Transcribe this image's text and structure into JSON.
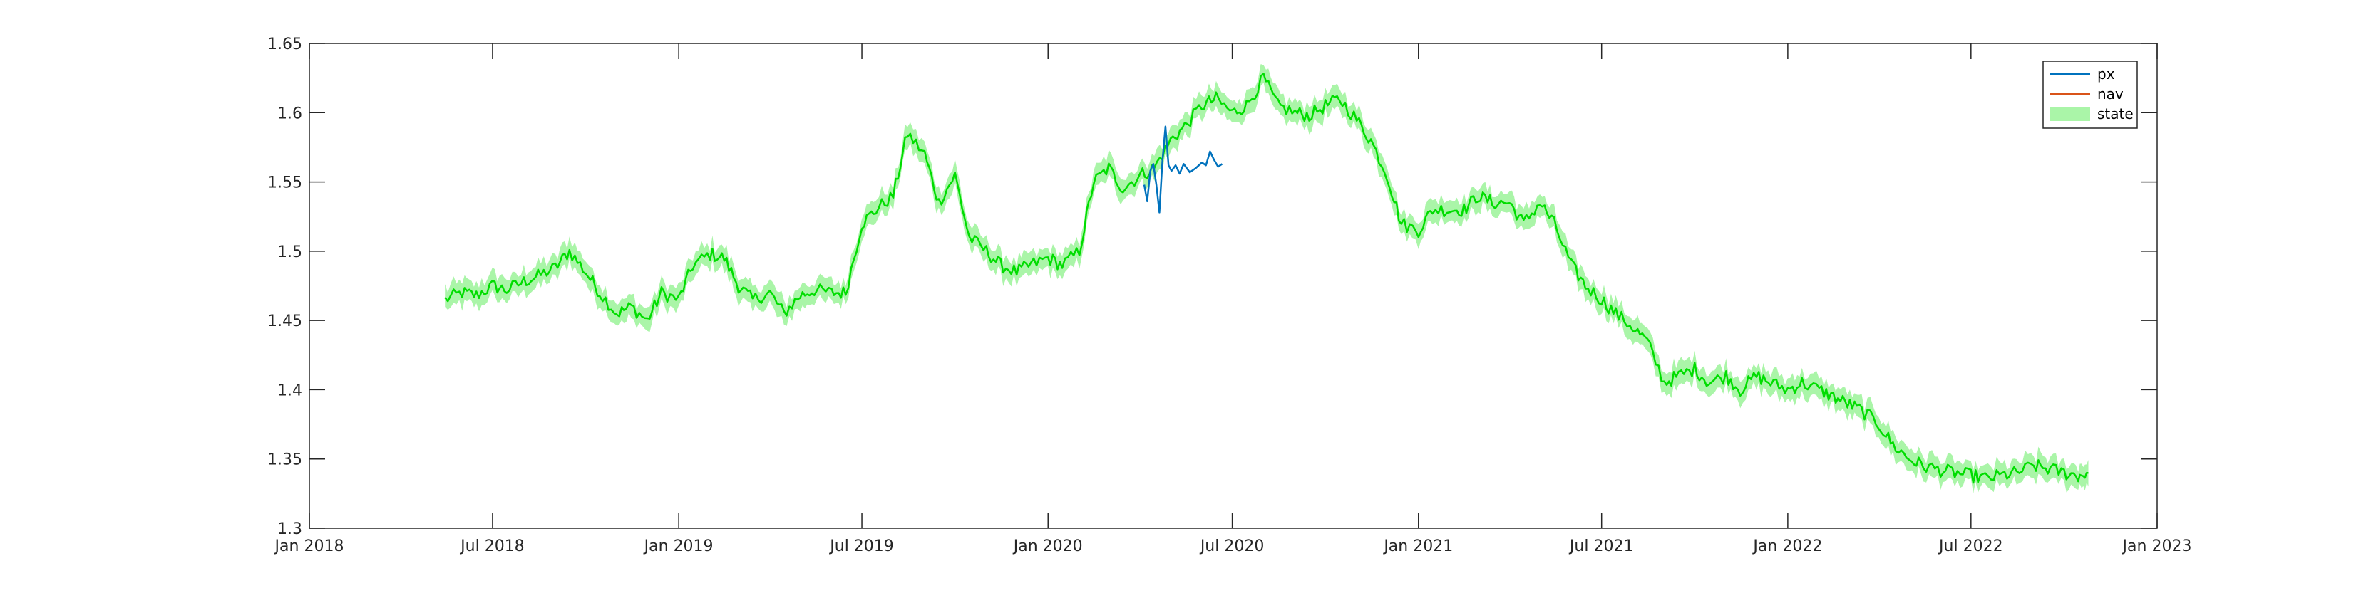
{
  "chart_data": {
    "type": "line",
    "title": "",
    "xlabel": "",
    "ylabel": "",
    "ylim": [
      1.3,
      1.65
    ],
    "xlim": [
      "2018-01-01",
      "2023-01-01"
    ],
    "y_ticks": [
      "1.3",
      "1.35",
      "1.4",
      "1.45",
      "1.5",
      "1.55",
      "1.6",
      "1.65"
    ],
    "x_ticks": [
      "Jan 2018",
      "Jul 2018",
      "Jan 2019",
      "Jul 2019",
      "Jan 2020",
      "Jul 2020",
      "Jan 2021",
      "Jul 2021",
      "Jan 2022",
      "Jul 2022",
      "Jan 2023"
    ],
    "x_tick_dates": [
      "2018-01-01",
      "2018-07-01",
      "2019-01-01",
      "2019-07-01",
      "2020-01-01",
      "2020-07-01",
      "2021-01-01",
      "2021-07-01",
      "2022-01-01",
      "2022-07-01",
      "2023-01-01"
    ],
    "grid": false,
    "legend_position": "top-right",
    "legend": [
      {
        "label": "px",
        "color": "#0072BD",
        "kind": "line"
      },
      {
        "label": "nav",
        "color": "#D95319",
        "kind": "line"
      },
      {
        "label": "state",
        "color": "#aaf5a8",
        "kind": "band"
      }
    ],
    "series": [
      {
        "name": "state",
        "color": "#00dd00",
        "band_color": "#aaf5a8",
        "band_halfwidth": 0.008,
        "x": [
          "2018-05-15",
          "2018-06-01",
          "2018-06-15",
          "2018-07-01",
          "2018-07-15",
          "2018-08-01",
          "2018-08-15",
          "2018-09-01",
          "2018-09-15",
          "2018-10-01",
          "2018-10-15",
          "2018-11-01",
          "2018-11-15",
          "2018-12-01",
          "2018-12-15",
          "2019-01-01",
          "2019-01-15",
          "2019-02-01",
          "2019-02-15",
          "2019-03-01",
          "2019-03-15",
          "2019-04-01",
          "2019-04-15",
          "2019-05-01",
          "2019-05-15",
          "2019-06-01",
          "2019-06-15",
          "2019-07-01",
          "2019-07-15",
          "2019-08-01",
          "2019-08-15",
          "2019-09-01",
          "2019-09-15",
          "2019-10-01",
          "2019-10-15",
          "2019-11-01",
          "2019-11-15",
          "2019-12-01",
          "2019-12-15",
          "2020-01-01",
          "2020-01-15",
          "2020-02-01",
          "2020-02-15",
          "2020-03-01",
          "2020-03-15",
          "2020-04-01",
          "2020-04-15",
          "2020-05-01",
          "2020-05-15",
          "2020-06-01",
          "2020-06-15",
          "2020-07-01",
          "2020-07-15",
          "2020-08-01",
          "2020-08-15",
          "2020-09-01",
          "2020-09-15",
          "2020-10-01",
          "2020-10-15",
          "2020-11-01",
          "2020-11-15",
          "2020-12-01",
          "2020-12-15",
          "2021-01-01",
          "2021-01-15",
          "2021-02-01",
          "2021-02-15",
          "2021-03-01",
          "2021-03-15",
          "2021-04-01",
          "2021-04-15",
          "2021-05-01",
          "2021-05-15",
          "2021-06-01",
          "2021-06-15",
          "2021-07-01",
          "2021-07-15",
          "2021-08-01",
          "2021-08-15",
          "2021-09-01",
          "2021-09-15",
          "2021-10-01",
          "2021-10-15",
          "2021-11-01",
          "2021-11-15",
          "2021-12-01",
          "2021-12-15",
          "2022-01-01",
          "2022-01-15",
          "2022-02-01",
          "2022-02-15",
          "2022-03-01",
          "2022-03-15",
          "2022-04-01",
          "2022-04-15",
          "2022-05-01",
          "2022-05-15",
          "2022-06-01",
          "2022-06-15",
          "2022-07-01",
          "2022-07-15",
          "2022-08-01",
          "2022-08-15",
          "2022-09-01",
          "2022-09-15",
          "2022-10-01",
          "2022-10-15",
          "2022-10-25"
        ],
        "y": [
          1.465,
          1.47,
          1.468,
          1.475,
          1.472,
          1.478,
          1.482,
          1.488,
          1.5,
          1.485,
          1.47,
          1.455,
          1.46,
          1.45,
          1.47,
          1.465,
          1.49,
          1.498,
          1.495,
          1.475,
          1.465,
          1.47,
          1.455,
          1.468,
          1.472,
          1.47,
          1.47,
          1.52,
          1.53,
          1.54,
          1.585,
          1.57,
          1.535,
          1.555,
          1.51,
          1.5,
          1.49,
          1.485,
          1.49,
          1.495,
          1.49,
          1.5,
          1.55,
          1.56,
          1.545,
          1.555,
          1.56,
          1.58,
          1.59,
          1.605,
          1.61,
          1.6,
          1.605,
          1.625,
          1.605,
          1.6,
          1.598,
          1.605,
          1.61,
          1.595,
          1.58,
          1.555,
          1.52,
          1.515,
          1.53,
          1.53,
          1.53,
          1.54,
          1.535,
          1.535,
          1.52,
          1.535,
          1.52,
          1.49,
          1.475,
          1.465,
          1.455,
          1.445,
          1.435,
          1.405,
          1.41,
          1.415,
          1.405,
          1.41,
          1.4,
          1.41,
          1.405,
          1.4,
          1.405,
          1.4,
          1.395,
          1.39,
          1.385,
          1.375,
          1.36,
          1.35,
          1.345,
          1.342,
          1.34,
          1.338,
          1.336,
          1.338,
          1.34,
          1.345,
          1.343,
          1.34,
          1.338,
          1.34
        ]
      },
      {
        "name": "px",
        "color": "#0072BD",
        "x": [
          "2020-04-05",
          "2020-04-08",
          "2020-04-11",
          "2020-04-14",
          "2020-04-17",
          "2020-04-20",
          "2020-04-23",
          "2020-04-26",
          "2020-04-29",
          "2020-05-02",
          "2020-05-06",
          "2020-05-10",
          "2020-05-14",
          "2020-05-20",
          "2020-05-26",
          "2020-06-01",
          "2020-06-05",
          "2020-06-09",
          "2020-06-13",
          "2020-06-17",
          "2020-06-21"
        ],
        "y": [
          1.548,
          1.536,
          1.558,
          1.563,
          1.548,
          1.528,
          1.565,
          1.59,
          1.562,
          1.558,
          1.562,
          1.556,
          1.563,
          1.557,
          1.56,
          1.564,
          1.562,
          1.572,
          1.566,
          1.561,
          1.563
        ]
      },
      {
        "name": "nav",
        "color": "#D95319",
        "x": [],
        "y": []
      }
    ]
  }
}
